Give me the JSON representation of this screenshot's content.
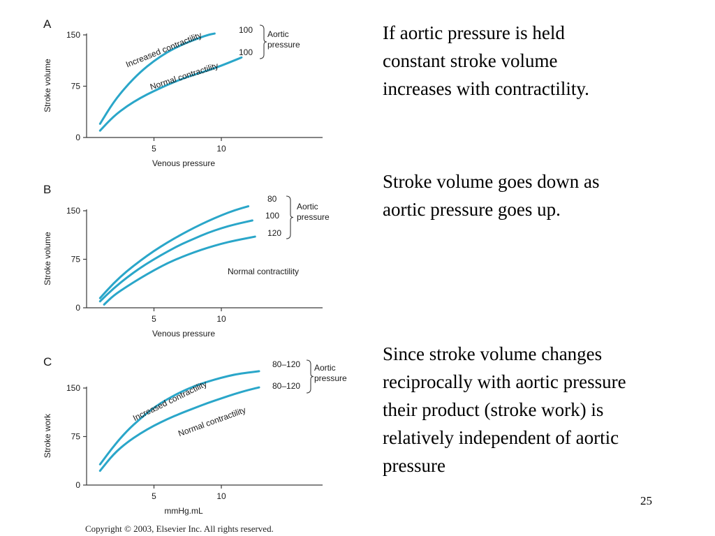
{
  "colors": {
    "curve": "#2aa6c9",
    "axis": "#3a3a3a",
    "text": "#000000"
  },
  "chart_data": [
    {
      "type": "line",
      "panel_label": "A",
      "xlabel": "Venous pressure",
      "ylabel": "Stroke volume",
      "xlim": [
        0,
        14
      ],
      "ylim": [
        0,
        150
      ],
      "xticks": [
        5,
        10
      ],
      "yticks": [
        0,
        75,
        150
      ],
      "x_tick_labels": [
        "5",
        "10"
      ],
      "y_tick_labels": [
        "0",
        "75",
        "150"
      ],
      "series": [
        {
          "name": "Increased contractility",
          "end_label": "100",
          "x": [
            1,
            2,
            3,
            4,
            5,
            6,
            7,
            8,
            9,
            9.5
          ],
          "y": [
            20,
            52,
            76,
            96,
            112,
            125,
            135,
            143,
            150,
            152
          ]
        },
        {
          "name": "Normal contractility",
          "end_label": "100",
          "x": [
            1,
            2,
            3,
            4,
            5,
            6,
            7,
            8,
            9,
            10,
            11,
            11.5
          ],
          "y": [
            10,
            31,
            46,
            58,
            68,
            77,
            85,
            92,
            98,
            105,
            113,
            117
          ]
        }
      ],
      "group_label": "Aortic\npressure"
    },
    {
      "type": "line",
      "panel_label": "B",
      "xlabel": "Venous pressure",
      "ylabel": "Stroke volume",
      "xlim": [
        0,
        14
      ],
      "ylim": [
        0,
        150
      ],
      "xticks": [
        5,
        10
      ],
      "yticks": [
        0,
        75,
        150
      ],
      "x_tick_labels": [
        "5",
        "10"
      ],
      "y_tick_labels": [
        "0",
        "75",
        "150"
      ],
      "series": [
        {
          "name": "80",
          "end_label": "80",
          "x": [
            1,
            2,
            3,
            4,
            5,
            6,
            7,
            8,
            9,
            10,
            11,
            12
          ],
          "y": [
            15,
            38,
            57,
            73,
            88,
            101,
            113,
            124,
            134,
            143,
            151,
            157
          ]
        },
        {
          "name": "100",
          "end_label": "100",
          "x": [
            1,
            2,
            3,
            4,
            5,
            6,
            7,
            8,
            9,
            10,
            11,
            12.3
          ],
          "y": [
            10,
            30,
            47,
            62,
            75,
            87,
            98,
            107,
            116,
            123,
            129,
            135
          ]
        },
        {
          "name": "120",
          "end_label": "120",
          "x": [
            1.3,
            2,
            3,
            4,
            5,
            6,
            7,
            8,
            9,
            10,
            11,
            12.5
          ],
          "y": [
            5,
            19,
            33,
            46,
            58,
            69,
            78,
            86,
            93,
            99,
            104,
            110
          ]
        }
      ],
      "group_label": "Aortic\npressure",
      "annotation": "Normal contractility"
    },
    {
      "type": "line",
      "panel_label": "C",
      "xlabel": "mmHg.mL",
      "ylabel": "Stroke work",
      "xlim": [
        0,
        14
      ],
      "ylim": [
        0,
        150
      ],
      "xticks": [
        5,
        10
      ],
      "yticks": [
        0,
        75,
        150
      ],
      "x_tick_labels": [
        "5",
        "10"
      ],
      "y_tick_labels": [
        "0",
        "75",
        "150"
      ],
      "series": [
        {
          "name": "Increased contractility",
          "end_label": "80–120",
          "x": [
            1,
            2,
            3,
            4,
            5,
            6,
            7,
            8,
            9,
            10,
            11,
            12,
            12.8
          ],
          "y": [
            32,
            60,
            84,
            103,
            120,
            133,
            144,
            153,
            160,
            166,
            171,
            174,
            176
          ]
        },
        {
          "name": "Normal contractility",
          "end_label": "80–120",
          "x": [
            1,
            2,
            3,
            4,
            5,
            6,
            7,
            8,
            9,
            10,
            11,
            12,
            12.8
          ],
          "y": [
            22,
            48,
            66,
            80,
            92,
            102,
            111,
            119,
            127,
            134,
            141,
            147,
            151
          ]
        }
      ],
      "group_label": "Aortic\npressure"
    }
  ],
  "text_blocks": [
    "If aortic pressure is held\nconstant stroke volume\nincreases with contractility.",
    "Stroke volume goes down as\naortic pressure goes up.",
    "Since stroke volume changes\nreciprocally with aortic pressure\ntheir product (stroke work) is\nrelatively independent of aortic\npressure"
  ],
  "page_number": "25",
  "copyright": "Copyright © 2003, Elsevier Inc. All rights reserved."
}
